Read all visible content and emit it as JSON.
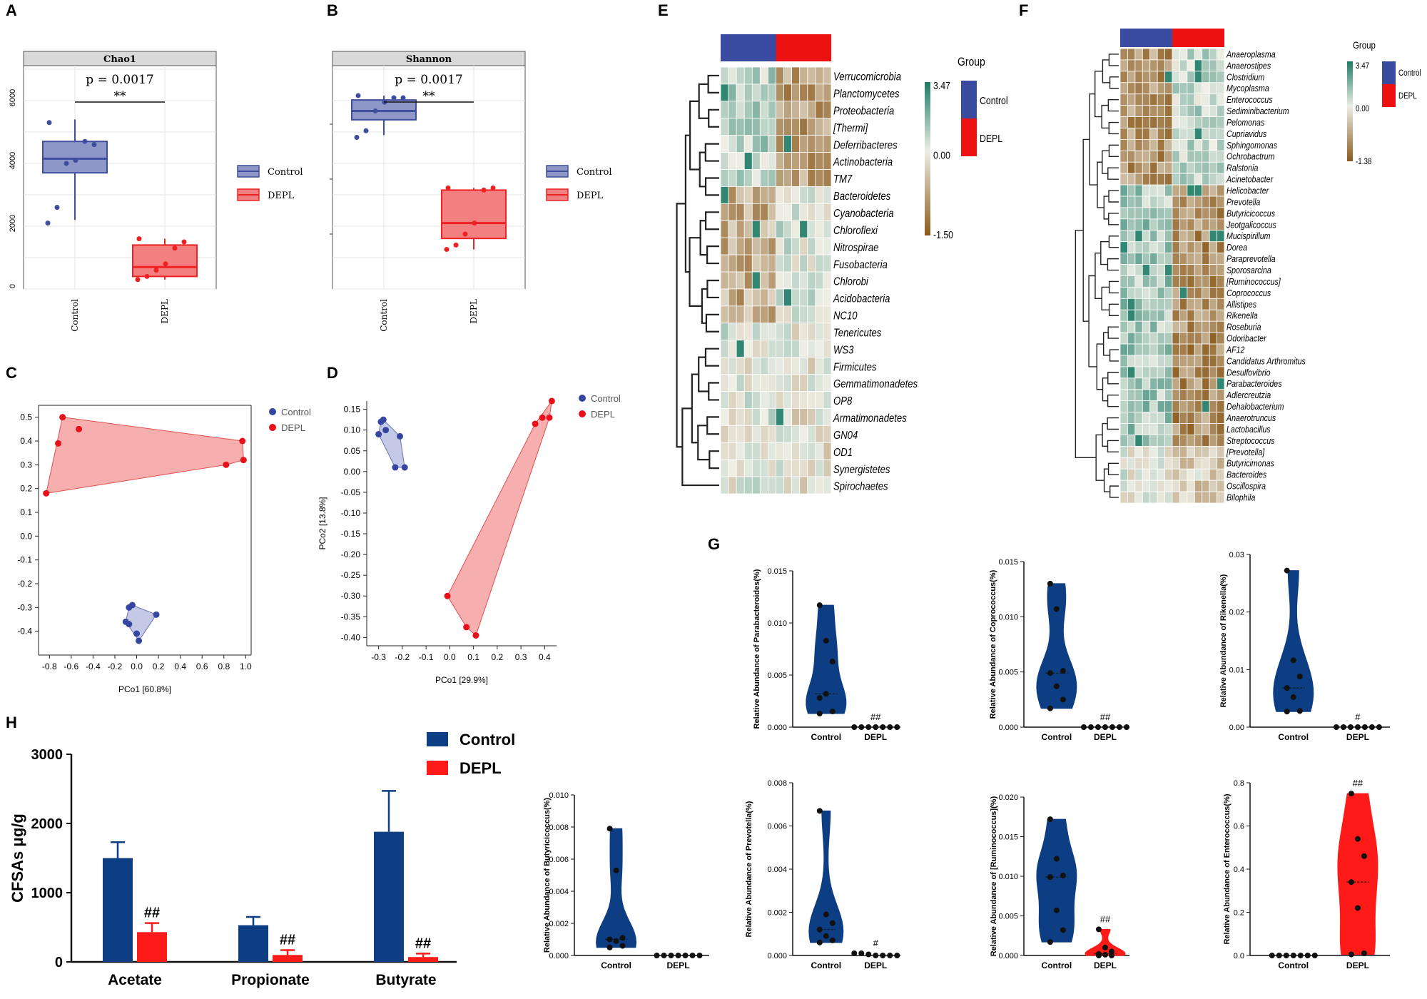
{
  "colors": {
    "control": "#3f4f9e",
    "depl": "#ee2222",
    "navy": "#0d3d82",
    "red": "#ff1a1a",
    "heat_high": "#1d7b66",
    "heat_mid": "#efefe6",
    "heat_low": "#8b5a1c"
  },
  "chart_data": [
    {
      "panel": "A",
      "type": "box",
      "title": "Chao1",
      "p_text": "p = 0.0017",
      "sig": "**",
      "categories": [
        "Control",
        "DEPL"
      ],
      "ylim": [
        0,
        7000
      ],
      "yticks": [
        0,
        2000,
        4000,
        6000
      ],
      "series": [
        {
          "name": "Control",
          "q1": 3700,
          "median": 4150,
          "q3": 4700,
          "whisker_low": 2200,
          "whisker_high": 5400,
          "points": [
            2100,
            2600,
            4000,
            4100,
            4700,
            4600,
            5300
          ]
        },
        {
          "name": "DEPL",
          "q1": 400,
          "median": 700,
          "q3": 1400,
          "whisker_low": 300,
          "whisker_high": 1600,
          "points": [
            300,
            400,
            600,
            800,
            1300,
            1500,
            1600
          ]
        }
      ],
      "legend": [
        "Control",
        "DEPL"
      ]
    },
    {
      "panel": "B",
      "type": "box",
      "title": "Shannon",
      "p_text": "p = 0.0017",
      "sig": "**",
      "categories": [
        "Control",
        "DEPL"
      ],
      "ylim": [
        0,
        10
      ],
      "series": [
        {
          "name": "Control",
          "q1": 7.7,
          "median": 8.1,
          "q3": 8.6,
          "whisker_low": 7.0,
          "whisker_high": 8.8,
          "points": [
            6.9,
            7.2,
            8.1,
            8.5,
            8.7,
            8.7,
            8.8
          ]
        },
        {
          "name": "DEPL",
          "q1": 2.3,
          "median": 3.0,
          "q3": 4.5,
          "whisker_low": 1.8,
          "whisker_high": 4.6,
          "points": [
            1.8,
            2.0,
            2.5,
            3.0,
            4.5,
            4.6,
            4.6
          ]
        }
      ],
      "legend": [
        "Control",
        "DEPL"
      ]
    },
    {
      "panel": "C",
      "type": "scatter",
      "xlabel": "PCo1 [60.8%]",
      "ylabel": "",
      "xlim": [
        -0.9,
        1.05
      ],
      "ylim": [
        -0.5,
        0.55
      ],
      "xticks": [
        "-0.8",
        "-0.6",
        "-0.4",
        "-0.2",
        "0.0",
        "0.2",
        "0.4",
        "0.6",
        "0.8",
        "1.0"
      ],
      "yticks": [
        "0.5",
        "0.4",
        "0.3",
        "0.2",
        "0.1",
        "0.0",
        "-0.1",
        "-0.2",
        "-0.3",
        "-0.4"
      ],
      "series": [
        {
          "name": "Control",
          "x": [
            -0.07,
            -0.04,
            0.18,
            0.02,
            -0.1,
            -0.07,
            0.0
          ],
          "y": [
            -0.3,
            -0.29,
            -0.33,
            -0.44,
            -0.36,
            -0.37,
            -0.41
          ]
        },
        {
          "name": "DEPL",
          "x": [
            -0.72,
            -0.68,
            -0.53,
            0.97,
            0.98,
            0.82,
            -0.83
          ],
          "y": [
            0.39,
            0.5,
            0.45,
            0.4,
            0.32,
            0.3,
            0.18
          ]
        }
      ],
      "legend": [
        "Control",
        "DEPL"
      ]
    },
    {
      "panel": "D",
      "type": "scatter",
      "xlabel": "PCo1 [29.9%]",
      "ylabel": "PCo2 [13.8%]",
      "xlim": [
        -0.35,
        0.45
      ],
      "ylim": [
        -0.42,
        0.17
      ],
      "xticks": [
        "-0.3",
        "-0.2",
        "-0.1",
        "0.0",
        "0.1",
        "0.2",
        "0.3",
        "0.4"
      ],
      "yticks": [
        "0.15",
        "0.10",
        "0.05",
        "0.00",
        "-0.05",
        "-0.10",
        "-0.15",
        "-0.20",
        "-0.25",
        "-0.30",
        "-0.35",
        "-0.40"
      ],
      "series": [
        {
          "name": "Control",
          "x": [
            -0.29,
            -0.28,
            -0.3,
            -0.21,
            -0.19,
            -0.23,
            -0.27
          ],
          "y": [
            0.12,
            0.125,
            0.09,
            0.085,
            0.01,
            0.01,
            0.1
          ]
        },
        {
          "name": "DEPL",
          "x": [
            0.36,
            0.39,
            0.42,
            0.43,
            -0.01,
            0.07,
            0.11
          ],
          "y": [
            0.115,
            0.13,
            0.13,
            0.17,
            -0.3,
            -0.375,
            -0.395
          ]
        }
      ],
      "legend": [
        "Control",
        "DEPL"
      ]
    },
    {
      "panel": "E",
      "type": "heatmap",
      "legend_title": "Group",
      "scale_max": "3.47",
      "scale_mid": "0.00",
      "scale_min": "-1.50",
      "legend": [
        "Control",
        "DEPL"
      ],
      "rows": [
        "Verrucomicrobia",
        "Planctomycetes",
        "Proteobacteria",
        "[Thermi]",
        "Deferribacteres",
        "Actinobacteria",
        "TM7",
        "Bacteroidetes",
        "Cyanobacteria",
        "Chloroflexi",
        "Nitrospirae",
        "Fusobacteria",
        "Chlorobi",
        "Acidobacteria",
        "NC10",
        "Tenericutes",
        "WS3",
        "Firmicutes",
        "Gemmatimonadetes",
        "OP8",
        "Armatimonadetes",
        "GN04",
        "OD1",
        "Synergistetes",
        "Spirochaetes"
      ]
    },
    {
      "panel": "F",
      "type": "heatmap",
      "legend_title": "Group",
      "scale_max": "3.47",
      "scale_mid": "0.00",
      "scale_min": "-1.38",
      "legend": [
        "Control",
        "DEPL"
      ],
      "rows": [
        "Anaeroplasma",
        "Anaerostipes",
        "Clostridium",
        "Mycoplasma",
        "Enterococcus",
        "Sediminibacterium",
        "Pelomonas",
        "Cupriavidus",
        "Sphingomonas",
        "Ochrobactrum",
        "Ralstonia",
        "Acinetobacter",
        "Helicobacter",
        "Prevotella",
        "Butyricicoccus",
        "Jeotgalicoccus",
        "Mucispirillum",
        "Dorea",
        "Paraprevotella",
        "Sporosarcina",
        "[Ruminococcus]",
        "Coprococcus",
        "Allistipes",
        "Rikenella",
        "Roseburia",
        "Odoribacter",
        "AF12",
        "Candidatus Arthromitus",
        "Desulfovibrio",
        "Parabacteroides",
        "Adlercreutzia",
        "Dehalobacterium",
        "Anaerotruncus",
        "Lactobacillus",
        "Streptococcus",
        "[Prevotella]",
        "Butyricimonas",
        "Bacteroides",
        "Oscillospira",
        "Bilophila"
      ]
    },
    {
      "panel": "G1",
      "type": "violin",
      "ylabel": "Relative Abundance of Parabacteroides(%)",
      "categories": [
        "Control",
        "DEPL"
      ],
      "ylim": [
        0,
        0.015
      ],
      "yticks": [
        "0.000",
        "0.005",
        "0.010",
        "0.015"
      ],
      "control": [
        0.0117,
        0.0083,
        0.0063,
        0.0028,
        0.0032,
        0.0015,
        0.0013
      ],
      "depl": [
        0,
        0,
        0,
        0,
        0,
        0,
        0
      ],
      "sig": "##"
    },
    {
      "panel": "G2",
      "type": "violin",
      "ylabel": "Relative Abundance of Coprococcus(%)",
      "categories": [
        "Control",
        "DEPL"
      ],
      "ylim": [
        0,
        0.015
      ],
      "yticks": [
        "0.000",
        "0.005",
        "0.010",
        "0.015"
      ],
      "control": [
        0.013,
        0.0107,
        0.0051,
        0.0049,
        0.0037,
        0.0025,
        0.0017
      ],
      "depl": [
        0,
        0,
        0,
        0,
        0,
        0,
        0
      ],
      "sig": "##"
    },
    {
      "panel": "G3",
      "type": "violin",
      "ylabel": "Relative Abundance of Rikenella(%)",
      "categories": [
        "Control",
        "DEPL"
      ],
      "ylim": [
        0,
        0.03
      ],
      "yticks": [
        "0.00",
        "0.01",
        "0.02",
        "0.03"
      ],
      "control": [
        0.0272,
        0.0116,
        0.0088,
        0.0068,
        0.0052,
        0.0028,
        0.0027
      ],
      "depl": [
        0,
        0,
        0,
        0,
        0,
        0,
        0
      ],
      "sig": "#"
    },
    {
      "panel": "G4",
      "type": "violin",
      "ylabel": "Relative Abundance of Butyricicoccus(%)",
      "categories": [
        "Control",
        "DEPL"
      ],
      "ylim": [
        0,
        0.01
      ],
      "yticks": [
        "0.000",
        "0.002",
        "0.004",
        "0.006",
        "0.008",
        "0.010"
      ],
      "control": [
        0.0079,
        0.0053,
        0.0011,
        0.001,
        0.0009,
        0.0006,
        0.0005
      ],
      "depl": [
        0,
        0,
        0,
        0,
        0,
        0,
        0
      ],
      "sig": ""
    },
    {
      "panel": "G5",
      "type": "violin",
      "ylabel": "Relative Abundance of Prevotella(%)",
      "categories": [
        "Control",
        "DEPL"
      ],
      "ylim": [
        0,
        0.008
      ],
      "yticks": [
        "0.000",
        "0.002",
        "0.004",
        "0.006",
        "0.008"
      ],
      "control": [
        0.0067,
        0.0019,
        0.0015,
        0.0012,
        0.0009,
        0.0007,
        0.0006
      ],
      "depl": [
        0.0001,
        0.0001,
        5e-05,
        0,
        0,
        0,
        0
      ],
      "sig": "#"
    },
    {
      "panel": "G6",
      "type": "violin",
      "ylabel": "Relative Abundance of [Ruminococcus](%)",
      "categories": [
        "Control",
        "DEPL"
      ],
      "ylim": [
        0,
        0.02
      ],
      "yticks": [
        "0.000",
        "0.005",
        "0.010",
        "0.015",
        "0.020"
      ],
      "control": [
        0.0172,
        0.0122,
        0.0101,
        0.0099,
        0.0057,
        0.0032,
        0.0017
      ],
      "depl": [
        0.0033,
        0.001,
        0.0005,
        0.0002,
        0.0001,
        0,
        0
      ],
      "sig": "##"
    },
    {
      "panel": "G7",
      "type": "violin",
      "ylabel": "Relative Abundance of Enterococcus(%)",
      "categories": [
        "Control",
        "DEPL"
      ],
      "ylim": [
        0,
        0.8
      ],
      "yticks": [
        "0.0",
        "0.2",
        "0.4",
        "0.6",
        "0.8"
      ],
      "control": [
        0,
        0,
        0,
        0,
        0,
        0,
        0
      ],
      "depl": [
        0.75,
        0.54,
        0.46,
        0.34,
        0.22,
        0.01,
        0.005
      ],
      "sig": "##"
    },
    {
      "panel": "H",
      "type": "bar",
      "ylabel": "CFSAs μg/g",
      "categories": [
        "Acetate",
        "Propionate",
        "Butyrate"
      ],
      "ylim": [
        0,
        3000
      ],
      "yticks": [
        "0",
        "1000",
        "2000",
        "3000"
      ],
      "series": [
        {
          "name": "Control",
          "values": [
            1500,
            530,
            1880
          ],
          "errors": [
            230,
            120,
            590
          ]
        },
        {
          "name": "DEPL",
          "values": [
            430,
            100,
            70
          ],
          "errors": [
            130,
            70,
            50
          ]
        }
      ],
      "sig": [
        "##",
        "##",
        "##"
      ],
      "legend": [
        "Control",
        "DEPL"
      ]
    }
  ],
  "panel_letters": {
    "A": "A",
    "B": "B",
    "C": "C",
    "D": "D",
    "E": "E",
    "F": "F",
    "G": "G",
    "H": "H"
  }
}
